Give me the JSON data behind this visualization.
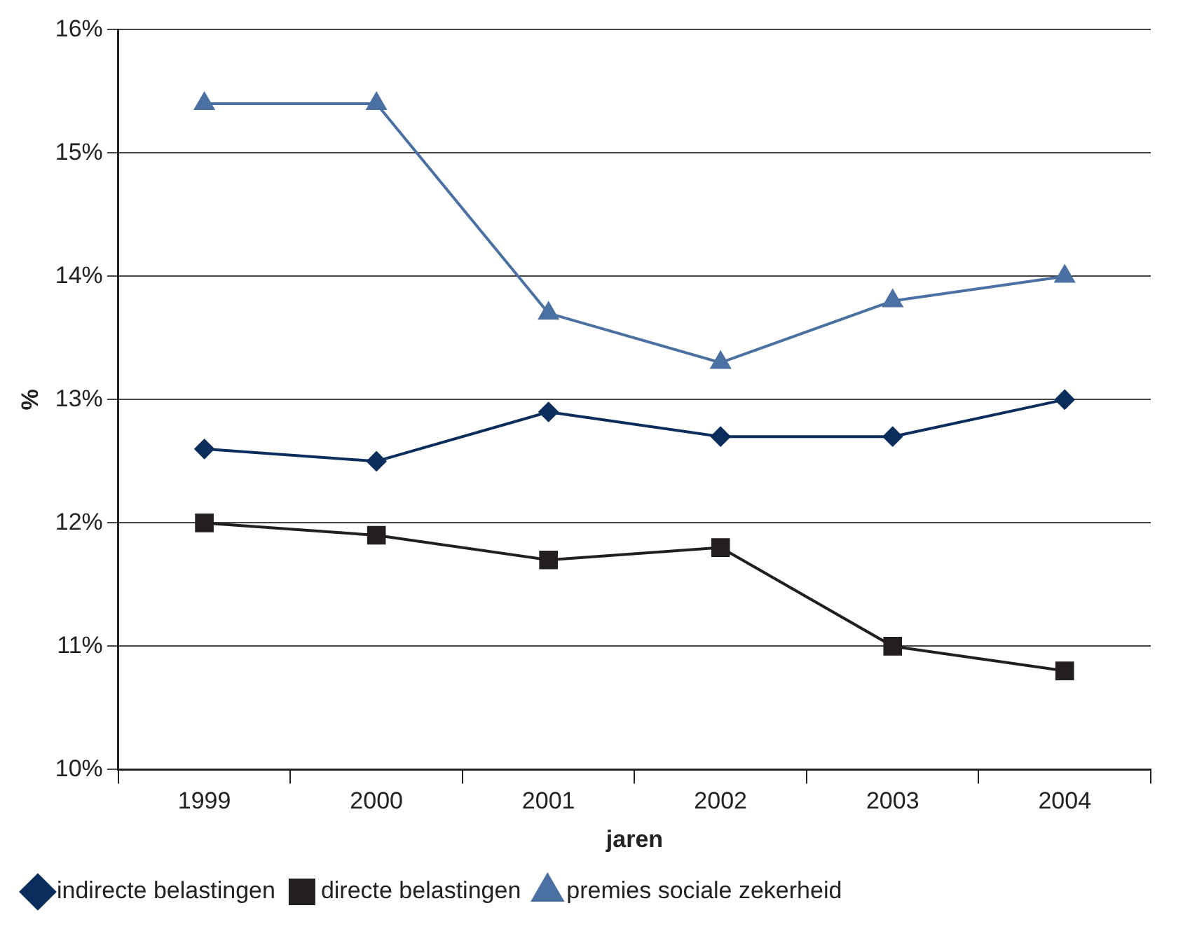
{
  "chart_data": {
    "type": "line",
    "xlabel": "jaren",
    "ylabel": "%",
    "categories": [
      "1999",
      "2000",
      "2001",
      "2002",
      "2003",
      "2004"
    ],
    "series": [
      {
        "name": "indirecte belastingen",
        "color": "#0b2d5b",
        "marker": "diamond",
        "values": [
          12.6,
          12.5,
          12.9,
          12.7,
          12.7,
          13.0
        ]
      },
      {
        "name": "directe belastingen",
        "color": "#231f20",
        "marker": "square",
        "values": [
          12.0,
          11.9,
          11.7,
          11.8,
          11.0,
          10.8
        ]
      },
      {
        "name": "premies sociale zekerheid",
        "color": "#4b70a2",
        "marker": "triangle",
        "values": [
          15.4,
          15.4,
          13.7,
          13.3,
          13.8,
          14.0
        ]
      }
    ],
    "ylim": [
      10,
      16
    ],
    "yticks": [
      {
        "value": 10,
        "label": "10%"
      },
      {
        "value": 11,
        "label": "11%"
      },
      {
        "value": 12,
        "label": "12%"
      },
      {
        "value": 13,
        "label": "13%"
      },
      {
        "value": 14,
        "label": "14%"
      },
      {
        "value": 15,
        "label": "15%"
      },
      {
        "value": 16,
        "label": "16%"
      }
    ],
    "grid": "y",
    "legend": "bottom",
    "line_style": "solid"
  }
}
